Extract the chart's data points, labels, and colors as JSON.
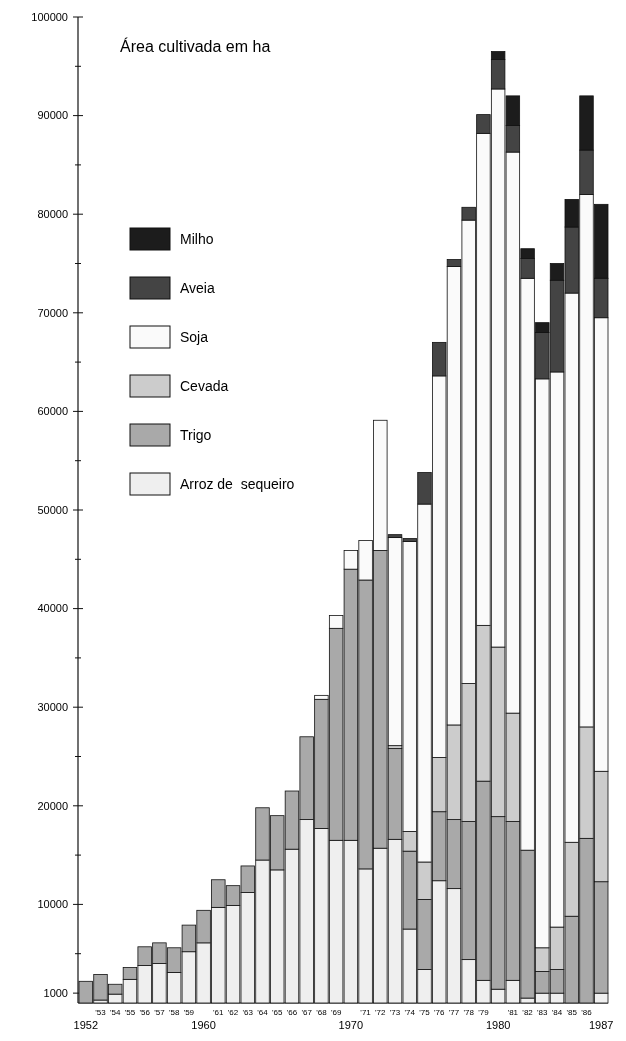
{
  "chart_data": {
    "type": "bar",
    "title": "Área cultivada em ha",
    "stacked": true,
    "legend": "top left",
    "categories": [
      "1952",
      "'53",
      "'54",
      "'55",
      "'56",
      "'57",
      "'58",
      "'59",
      "1960",
      "'61",
      "'62",
      "'63",
      "'64",
      "'65",
      "'66",
      "'67",
      "'68",
      "'69",
      "1970",
      "'71",
      "'72",
      "'73",
      "'74",
      "'75",
      "'76",
      "'77",
      "'78",
      "'79",
      "1980",
      "'81",
      "'82",
      "'83",
      "'84",
      "'85",
      "'86",
      "1987"
    ],
    "ylim": [
      0,
      100000
    ],
    "yticks": [
      1000,
      {
        "value": 5000,
        "label": null
      },
      10000,
      {
        "value": 15000,
        "label": null
      },
      20000,
      {
        "value": 25000,
        "label": null
      },
      30000,
      {
        "value": 35000,
        "label": null
      },
      40000,
      {
        "value": 45000,
        "label": null
      },
      50000,
      {
        "value": 55000,
        "label": null
      },
      60000,
      {
        "value": 65000,
        "label": null
      },
      70000,
      {
        "value": 75000,
        "label": null
      },
      80000,
      {
        "value": 85000,
        "label": null
      },
      90000,
      {
        "value": 95000,
        "label": null
      },
      100000
    ],
    "series": [
      {
        "name": "Arroz de  sequeiro",
        "color": "#efefef",
        "values": [
          0,
          300,
          900,
          2400,
          3800,
          4000,
          3100,
          5200,
          6100,
          9700,
          9900,
          11200,
          14500,
          13500,
          15600,
          18600,
          17700,
          16500,
          16500,
          13600,
          15700,
          16600,
          7500,
          3400,
          12400,
          11600,
          4400,
          2300,
          1400,
          2300,
          500,
          1000,
          1000,
          0,
          0,
          1000
        ]
      },
      {
        "name": "Trigo",
        "color": "#a9a9a9",
        "values": [
          2200,
          2600,
          1000,
          1200,
          1900,
          2100,
          2500,
          2700,
          3300,
          2800,
          2000,
          2700,
          5300,
          5500,
          5900,
          8400,
          13100,
          21500,
          27500,
          29300,
          30200,
          9200,
          7900,
          7100,
          7000,
          7000,
          14000,
          20200,
          17500,
          16100,
          15000,
          2200,
          2400,
          8800,
          16700,
          11300
        ]
      },
      {
        "name": "Cevada",
        "color": "#cccccc",
        "values": [
          0,
          0,
          0,
          0,
          0,
          0,
          0,
          0,
          0,
          0,
          0,
          0,
          0,
          0,
          0,
          0,
          0,
          0,
          0,
          0,
          0,
          300,
          2000,
          3800,
          5500,
          9600,
          14000,
          15800,
          17200,
          11000,
          0,
          2400,
          4300,
          7500,
          11300,
          11200
        ]
      },
      {
        "name": "Soja",
        "color": "#fafafa",
        "values": [
          0,
          0,
          0,
          0,
          0,
          0,
          0,
          0,
          0,
          0,
          0,
          0,
          0,
          0,
          0,
          0,
          400,
          1300,
          1900,
          4000,
          13200,
          21100,
          29400,
          36300,
          38700,
          46500,
          47000,
          49900,
          56600,
          56900,
          58000,
          57700,
          56300,
          55700,
          54000,
          46000
        ]
      },
      {
        "name": "Aveia",
        "color": "#444444",
        "values": [
          0,
          0,
          0,
          0,
          0,
          0,
          0,
          0,
          0,
          0,
          0,
          0,
          0,
          0,
          0,
          0,
          0,
          0,
          0,
          0,
          0,
          300,
          300,
          3200,
          3400,
          700,
          1300,
          1900,
          3000,
          2700,
          2000,
          4700,
          9300,
          6700,
          4500,
          4000
        ]
      },
      {
        "name": "Milho",
        "color": "#1c1c1c",
        "values": [
          0,
          0,
          0,
          0,
          0,
          0,
          0,
          0,
          0,
          0,
          0,
          0,
          0,
          0,
          0,
          0,
          0,
          0,
          0,
          0,
          0,
          0,
          0,
          0,
          0,
          0,
          0,
          0,
          800,
          3000,
          1000,
          1000,
          1700,
          2800,
          5500,
          7500
        ]
      }
    ]
  }
}
